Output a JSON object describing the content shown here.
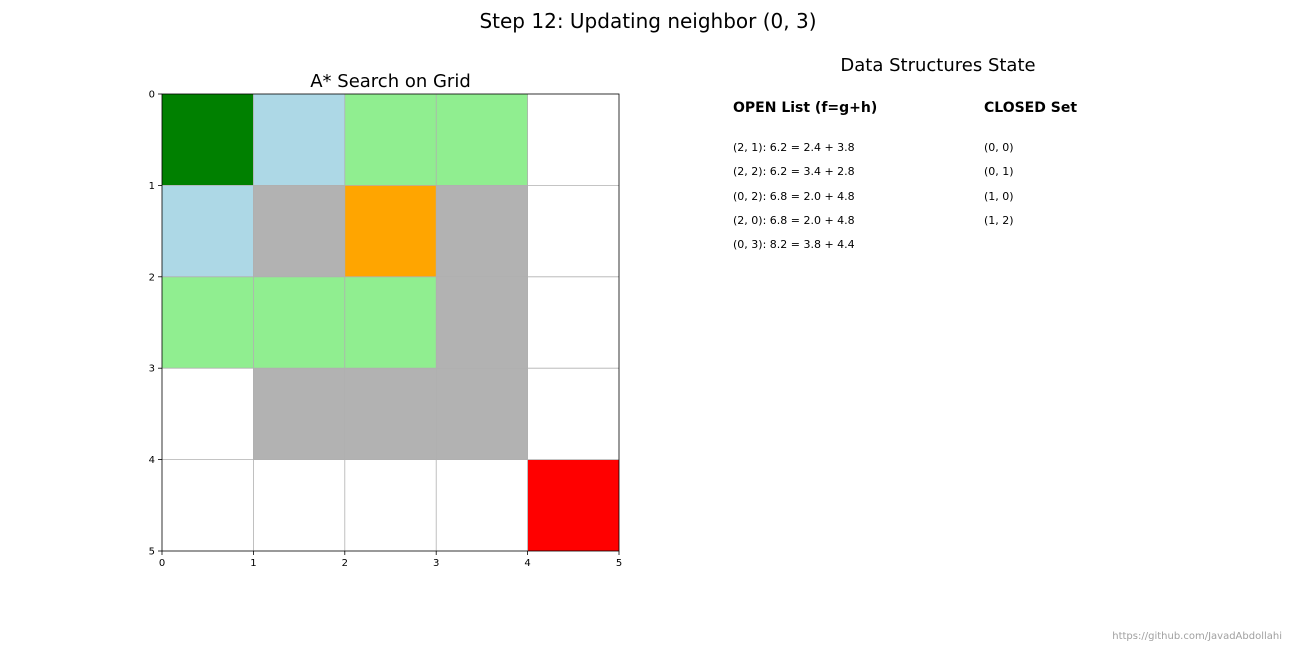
{
  "figure": {
    "title": "Step 12: Updating neighbor (0, 3)",
    "watermark": "https://github.com/JavadAbdollahi"
  },
  "grid": {
    "title": "A* Search on Grid",
    "rows": 5,
    "cols": 5,
    "x_ticks": [
      "0",
      "1",
      "2",
      "3",
      "4",
      "5"
    ],
    "y_ticks": [
      "0",
      "1",
      "2",
      "3",
      "4",
      "5"
    ],
    "colors": {
      "start": "#008000",
      "goal": "#ff0000",
      "current": "#ffa500",
      "open": "#90ee90",
      "closed": "#add8e6",
      "obstacle": "#b2b2b2",
      "empty": "#ffffff",
      "gridline": "#b0b0b0"
    },
    "cells": [
      [
        "start",
        "closed",
        "open",
        "open",
        "empty"
      ],
      [
        "closed",
        "obstacle",
        "current",
        "obstacle",
        "empty"
      ],
      [
        "open",
        "open",
        "open",
        "obstacle",
        "empty"
      ],
      [
        "empty",
        "obstacle",
        "obstacle",
        "obstacle",
        "empty"
      ],
      [
        "empty",
        "empty",
        "empty",
        "empty",
        "goal"
      ]
    ]
  },
  "state": {
    "title": "Data Structures State",
    "open_header": "OPEN List (f=g+h)",
    "closed_header": "CLOSED Set",
    "open_list": [
      "(2, 1): 6.2 = 2.4 + 3.8",
      "(2, 2): 6.2 = 3.4 + 2.8",
      "(0, 2): 6.8 = 2.0 + 4.8",
      "(2, 0): 6.8 = 2.0 + 4.8",
      "(0, 3): 8.2 = 3.8 + 4.4"
    ],
    "closed_list": [
      "(0, 0)",
      "(0, 1)",
      "(1, 0)",
      "(1, 2)"
    ]
  }
}
